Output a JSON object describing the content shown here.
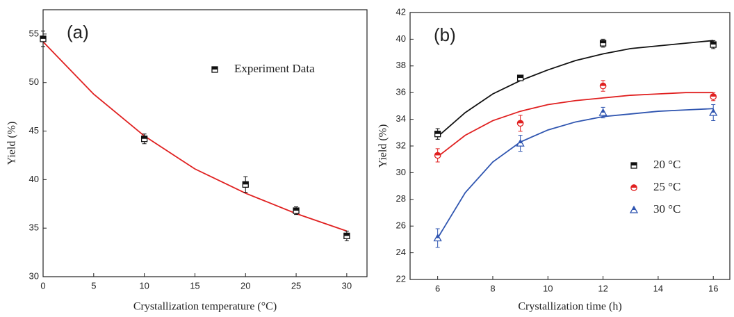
{
  "chart_data": [
    {
      "type": "scatter",
      "label": "(a)",
      "x_label": "Crystallization temperature (°C)",
      "y_label": "Yield (%)",
      "xlim": [
        0,
        32
      ],
      "ylim": [
        30,
        57.5
      ],
      "xticks": [
        0,
        5,
        10,
        15,
        20,
        25,
        30
      ],
      "yticks": [
        30,
        35,
        40,
        45,
        50,
        55
      ],
      "legend": "upper right",
      "series": [
        {
          "name": "Experiment Data",
          "color": "#111111",
          "marker": "square",
          "x": [
            0,
            10,
            20,
            25,
            30
          ],
          "values": [
            54.5,
            44.2,
            39.5,
            36.8,
            34.2
          ],
          "errors": [
            0.8,
            0.5,
            0.8,
            0.4,
            0.5
          ]
        }
      ],
      "fits": [
        {
          "color": "#e02020",
          "x": [
            0,
            5,
            10,
            15,
            20,
            25,
            30
          ],
          "values": [
            54.2,
            48.8,
            44.5,
            41.1,
            38.6,
            36.5,
            34.7
          ]
        }
      ]
    },
    {
      "type": "scatter",
      "label": "(b)",
      "x_label": "Crystallization time (h)",
      "y_label": "Yield (%)",
      "xlim": [
        5,
        16.6
      ],
      "ylim": [
        22,
        42
      ],
      "xticks": [
        6,
        8,
        10,
        12,
        14,
        16
      ],
      "yticks": [
        22,
        24,
        26,
        28,
        30,
        32,
        34,
        36,
        38,
        40,
        42
      ],
      "legend": "lower right",
      "series": [
        {
          "name": "20 °C",
          "color": "#111111",
          "marker": "square",
          "x": [
            6,
            9,
            12,
            16
          ],
          "values": [
            32.9,
            37.1,
            39.7,
            39.6
          ],
          "errors": [
            0.4,
            0.1,
            0.3,
            0.3
          ]
        },
        {
          "name": "25 °C",
          "color": "#e02020",
          "marker": "circle",
          "x": [
            6,
            9,
            12,
            16
          ],
          "values": [
            31.3,
            33.7,
            36.5,
            35.7
          ],
          "errors": [
            0.5,
            0.6,
            0.4,
            0.3
          ]
        },
        {
          "name": "30 °C",
          "color": "#2f55b0",
          "marker": "triangle",
          "x": [
            6,
            9,
            12,
            16
          ],
          "values": [
            25.1,
            32.2,
            34.5,
            34.5
          ],
          "errors": [
            0.7,
            0.6,
            0.4,
            0.6
          ]
        }
      ],
      "fits": [
        {
          "color": "#111111",
          "x": [
            6,
            7,
            8,
            9,
            10,
            11,
            12,
            13,
            14,
            15,
            16
          ],
          "values": [
            32.7,
            34.5,
            35.9,
            36.9,
            37.7,
            38.4,
            38.9,
            39.3,
            39.5,
            39.7,
            39.9
          ]
        },
        {
          "color": "#e02020",
          "x": [
            6,
            7,
            8,
            9,
            10,
            11,
            12,
            13,
            14,
            15,
            16
          ],
          "values": [
            31.2,
            32.8,
            33.9,
            34.6,
            35.1,
            35.4,
            35.6,
            35.8,
            35.9,
            36.0,
            36.0
          ]
        },
        {
          "color": "#2f55b0",
          "x": [
            6,
            7,
            8,
            9,
            10,
            11,
            12,
            13,
            14,
            15,
            16
          ],
          "values": [
            25.1,
            28.5,
            30.8,
            32.3,
            33.2,
            33.8,
            34.2,
            34.4,
            34.6,
            34.7,
            34.8
          ]
        }
      ]
    }
  ]
}
